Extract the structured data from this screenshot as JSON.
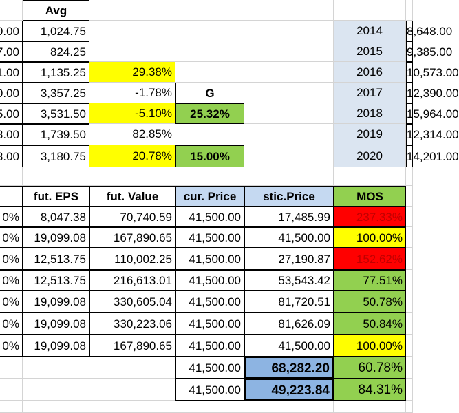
{
  "colors": {
    "yellow": "#ffff00",
    "green": "#92d050",
    "red": "#ff0000",
    "year_bg": "#dbe5f1",
    "header_blue": "#c5d9f1",
    "header_green": "#92d050",
    "total_blue": "#8db4e2",
    "grid": "#d4d4d4",
    "red_text": "#c00000"
  },
  "upper": {
    "avg_header": "Avg",
    "g_label": "G",
    "rows": [
      {
        "col_a": "0.00",
        "avg": "1,024.75",
        "pct": "",
        "g": "",
        "year": "2014",
        "value": "8,648.00"
      },
      {
        "col_a": "7.00",
        "avg": "824.25",
        "pct": "",
        "g": "",
        "year": "2015",
        "value": "9,385.00"
      },
      {
        "col_a": "1.00",
        "avg": "1,135.25",
        "pct": "29.38%",
        "g": "",
        "year": "2016",
        "value": "10,573.00"
      },
      {
        "col_a": "0.00",
        "avg": "3,357.25",
        "pct": "-1.78%",
        "g": "G",
        "year": "2017",
        "value": "12,390.00"
      },
      {
        "col_a": "5.00",
        "avg": "3,531.50",
        "pct": "-5.10%",
        "g": "25.32%",
        "year": "2018",
        "value": "15,964.00"
      },
      {
        "col_a": "3.00",
        "avg": "1,739.50",
        "pct": "82.85%",
        "g": "",
        "year": "2019",
        "value": "12,314.00"
      },
      {
        "col_a": "3.00",
        "avg": "3,180.75",
        "pct": "20.78%",
        "g": "15.00%",
        "year": "2020",
        "value": "14,201.00"
      }
    ]
  },
  "lower": {
    "headers": [
      "fut. EPS",
      "fut. Value",
      "cur. Price",
      "stic.Price",
      "MOS"
    ],
    "rows": [
      {
        "col_a": "0%",
        "eps": "8,047.38",
        "fut_value": "70,740.59",
        "cur_price": "41,500.00",
        "stic_price": "17,485.99",
        "mos": "237.33%"
      },
      {
        "col_a": "0%",
        "eps": "19,099.08",
        "fut_value": "167,890.65",
        "cur_price": "41,500.00",
        "stic_price": "41,500.00",
        "mos": "100.00%"
      },
      {
        "col_a": "0%",
        "eps": "12,513.75",
        "fut_value": "110,002.25",
        "cur_price": "41,500.00",
        "stic_price": "27,190.87",
        "mos": "152.62%"
      },
      {
        "col_a": "0%",
        "eps": "12,513.75",
        "fut_value": "216,613.01",
        "cur_price": "41,500.00",
        "stic_price": "53,543.42",
        "mos": "77.51%"
      },
      {
        "col_a": "0%",
        "eps": "19,099.08",
        "fut_value": "330,605.04",
        "cur_price": "41,500.00",
        "stic_price": "81,720.51",
        "mos": "50.78%"
      },
      {
        "col_a": "0%",
        "eps": "19,099.08",
        "fut_value": "330,223.06",
        "cur_price": "41,500.00",
        "stic_price": "81,626.09",
        "mos": "50.84%"
      },
      {
        "col_a": "0%",
        "eps": "19,099.08",
        "fut_value": "167,890.65",
        "cur_price": "41,500.00",
        "stic_price": "41,500.00",
        "mos": "100.00%"
      }
    ],
    "totals": [
      {
        "cur_price": "41,500.00",
        "stic_price": "68,282.20",
        "mos": "60.78%"
      },
      {
        "cur_price": "41,500.00",
        "stic_price": "49,223.84",
        "mos": "84.31%"
      }
    ]
  }
}
